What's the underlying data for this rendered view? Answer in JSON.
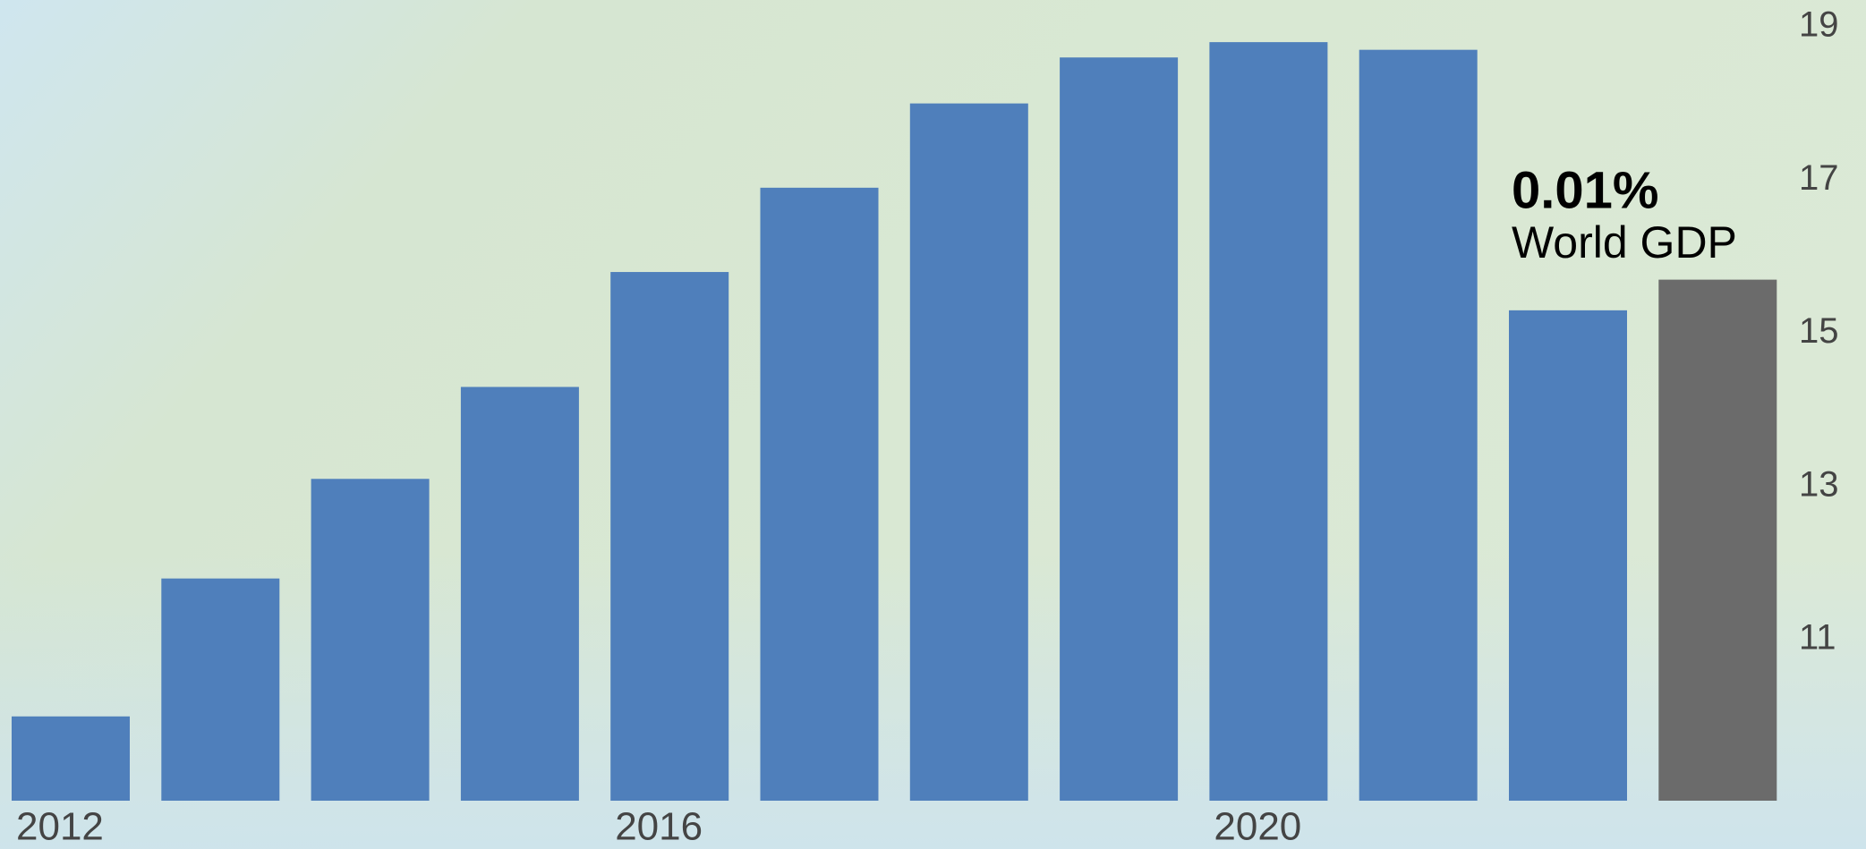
{
  "chart_data": {
    "type": "bar",
    "categories": [
      "2012",
      null,
      null,
      null,
      "2016",
      null,
      null,
      null,
      "2020",
      null,
      null,
      null
    ],
    "values": [
      10.0,
      11.8,
      13.1,
      14.3,
      15.8,
      16.9,
      18.0,
      18.6,
      18.8,
      18.7,
      15.3,
      15.7
    ],
    "colors": [
      "#4f7fbb",
      "#4f7fbb",
      "#4f7fbb",
      "#4f7fbb",
      "#4f7fbb",
      "#4f7fbb",
      "#4f7fbb",
      "#4f7fbb",
      "#4f7fbb",
      "#4f7fbb",
      "#4f7fbb",
      "#6b6b6b"
    ],
    "ylim": [
      8.9,
      19.35
    ],
    "yticks": [
      11,
      13,
      15,
      17,
      19
    ],
    "annotations": [
      "0.01%",
      "World GDP"
    ]
  }
}
